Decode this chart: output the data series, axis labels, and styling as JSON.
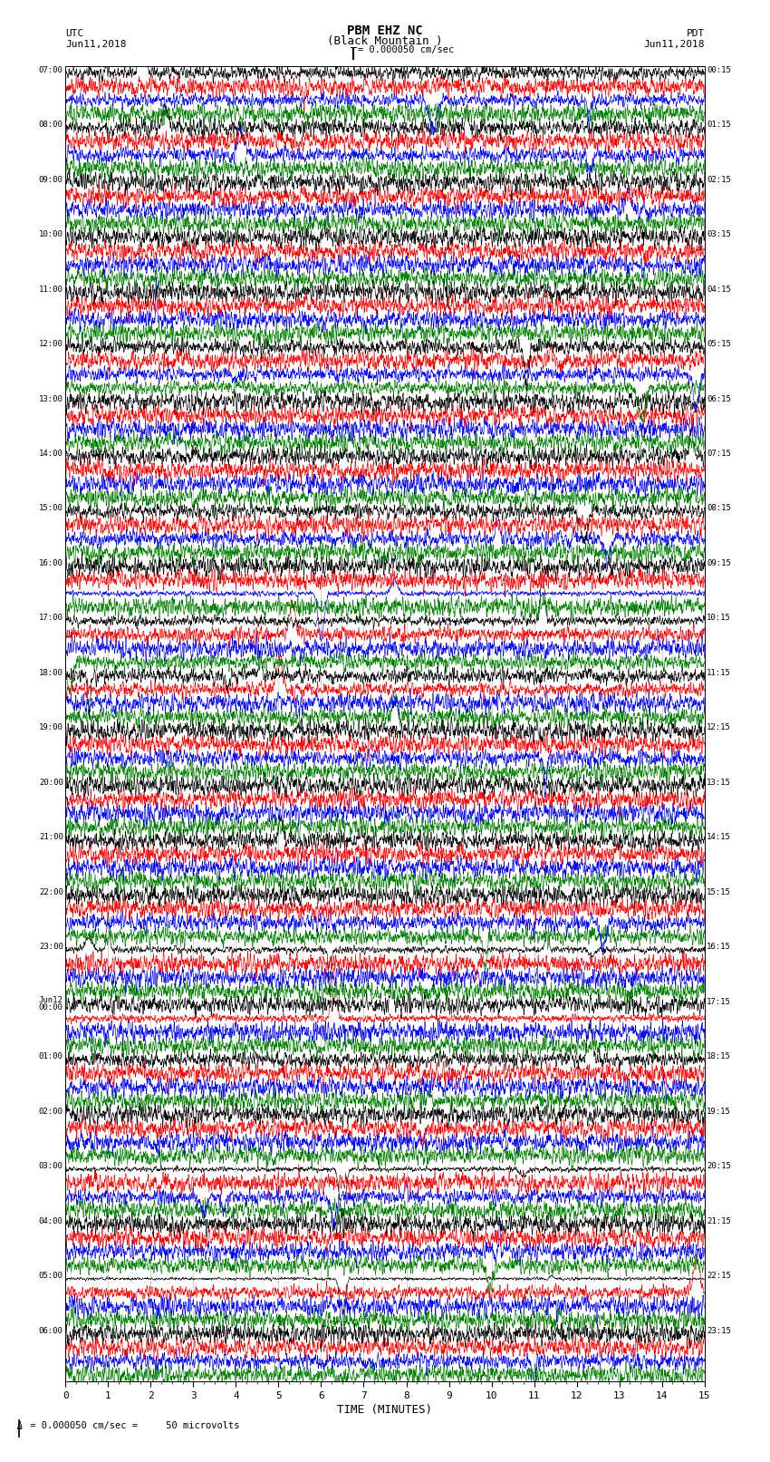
{
  "title_line1": "PBM EHZ NC",
  "title_line2": "(Black Mountain )",
  "scale_label": "= 0.000050 cm/sec",
  "left_label_top": "UTC",
  "left_label_date": "Jun11,2018",
  "right_label_top": "PDT",
  "right_label_date": "Jun11,2018",
  "left_hour_labels": [
    "07:00",
    "08:00",
    "09:00",
    "10:00",
    "11:00",
    "12:00",
    "13:00",
    "14:00",
    "15:00",
    "16:00",
    "17:00",
    "18:00",
    "19:00",
    "20:00",
    "21:00",
    "22:00",
    "23:00",
    "Jun12\n00:00",
    "01:00",
    "02:00",
    "03:00",
    "04:00",
    "05:00",
    "06:00"
  ],
  "right_hour_labels": [
    "00:15",
    "01:15",
    "02:15",
    "03:15",
    "04:15",
    "05:15",
    "06:15",
    "07:15",
    "08:15",
    "09:15",
    "10:15",
    "11:15",
    "12:15",
    "13:15",
    "14:15",
    "15:15",
    "16:15",
    "17:15",
    "18:15",
    "19:15",
    "20:15",
    "21:15",
    "22:15",
    "23:15"
  ],
  "xlabel": "TIME (MINUTES)",
  "xlim": [
    0,
    15
  ],
  "xticks": [
    0,
    1,
    2,
    3,
    4,
    5,
    6,
    7,
    8,
    9,
    10,
    11,
    12,
    13,
    14,
    15
  ],
  "footer": "= 0.000050 cm/sec =     50 microvolts",
  "colors": [
    "black",
    "red",
    "blue",
    "green"
  ],
  "n_hour_blocks": 24,
  "traces_per_block": 4,
  "bg_color": "white",
  "figsize": [
    8.5,
    16.13
  ],
  "dpi": 100
}
